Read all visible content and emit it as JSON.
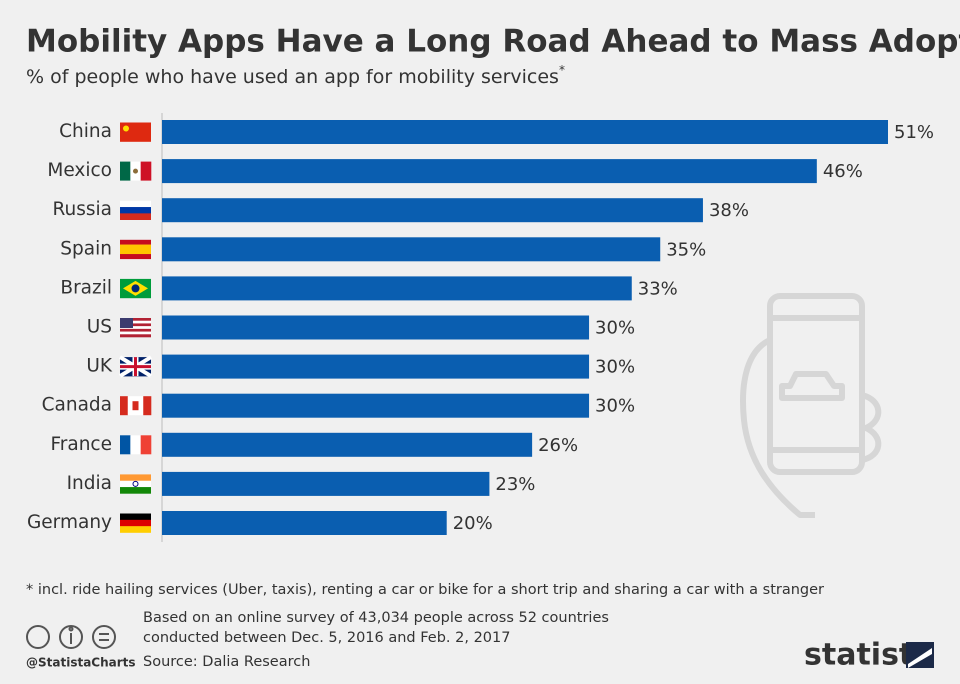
{
  "chart_data": {
    "type": "bar",
    "orientation": "horizontal",
    "title": "Mobility Apps Have a Long Road Ahead to Mass Adoption",
    "subtitle": "% of people who have used an app for mobility services",
    "subtitle_marker": "*",
    "categories": [
      "China",
      "Mexico",
      "Russia",
      "Spain",
      "Brazil",
      "US",
      "UK",
      "Canada",
      "France",
      "India",
      "Germany"
    ],
    "values": [
      51,
      46,
      38,
      35,
      33,
      30,
      30,
      30,
      26,
      23,
      20
    ],
    "value_labels": [
      "51%",
      "46%",
      "38%",
      "35%",
      "33%",
      "30%",
      "30%",
      "30%",
      "26%",
      "23%",
      "20%"
    ],
    "color": "#0a5eb0",
    "footnote": "* incl. ride hailing services (Uber, taxis), renting a car or bike for a short trip and sharing a car with a stranger",
    "notes": [
      "Based on an online survey of 43,034 people across 52 countries",
      "conducted between Dec. 5, 2016 and Feb. 2, 2017"
    ],
    "source": "Source: Dalia Research",
    "credit": "@StatistaCharts",
    "brand": "statista"
  }
}
